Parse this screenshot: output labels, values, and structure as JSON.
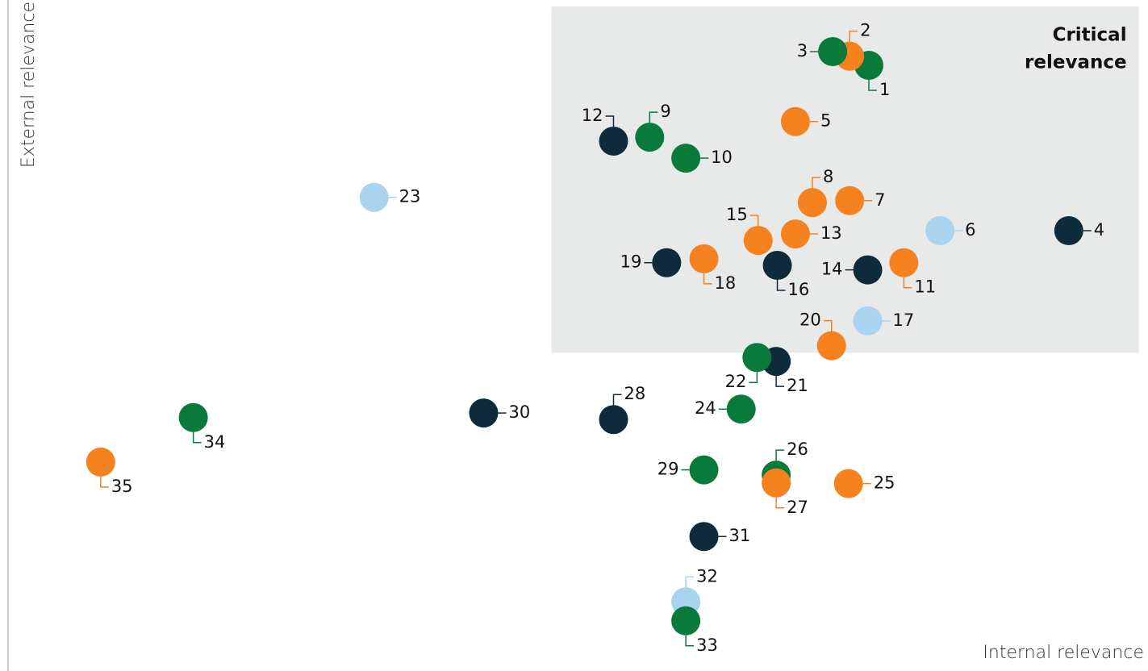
{
  "chart_data": {
    "type": "scatter",
    "x_label": "Internal relevance",
    "y_label": "External relevance",
    "xlim": [
      0,
      100.2
    ],
    "ylim": [
      0,
      101.2
    ],
    "highlight": {
      "label_lines": [
        "Critical",
        "relevance"
      ],
      "xlim": [
        48.1,
        100.1
      ],
      "ylim": [
        47.2,
        100.2
      ],
      "color": "#e8e9e9"
    },
    "labels": [
      "1",
      "2",
      "3",
      "4",
      "5",
      "6",
      "7",
      "8",
      "9",
      "10",
      "11",
      "12",
      "13",
      "14",
      "15",
      "16",
      "17",
      "18",
      "19",
      "20",
      "21",
      "22",
      "23",
      "24",
      "25",
      "26",
      "27",
      "28",
      "29",
      "30",
      "31",
      "32",
      "33",
      "34",
      "35"
    ],
    "x": [
      76.2,
      74.5,
      73.0,
      93.9,
      69.7,
      82.5,
      74.5,
      71.2,
      56.8,
      60.0,
      79.3,
      53.6,
      69.7,
      76.1,
      66.4,
      68.1,
      76.1,
      61.6,
      58.3,
      72.9,
      68.0,
      66.3,
      32.4,
      64.9,
      74.4,
      68.0,
      68.0,
      53.6,
      61.6,
      42.1,
      61.6,
      60.0,
      60.0,
      16.4,
      8.2
    ],
    "y": [
      91.2,
      92.6,
      93.3,
      65.9,
      82.6,
      65.9,
      70.5,
      70.2,
      80.2,
      77.0,
      61.0,
      79.6,
      65.4,
      59.9,
      64.4,
      60.6,
      52.1,
      61.6,
      61.0,
      48.3,
      45.9,
      46.5,
      71.0,
      38.6,
      27.2,
      28.5,
      27.3,
      37.0,
      29.3,
      38.0,
      19.1,
      9.1,
      6.2,
      37.3,
      30.5
    ],
    "colors": [
      "#0a7a3c",
      "#f6821f",
      "#0a7a3c",
      "#0d2b3a",
      "#f6821f",
      "#a9d3ee",
      "#f6821f",
      "#f6821f",
      "#0a7a3c",
      "#0a7a3c",
      "#f6821f",
      "#0d2b3a",
      "#f6821f",
      "#0d2b3a",
      "#f6821f",
      "#0d2b3a",
      "#a9d3ee",
      "#f6821f",
      "#0d2b3a",
      "#f6821f",
      "#0d2b3a",
      "#0a7a3c",
      "#a9d3ee",
      "#0a7a3c",
      "#f6821f",
      "#0a7a3c",
      "#f6821f",
      "#0d2b3a",
      "#0a7a3c",
      "#0d2b3a",
      "#0d2b3a",
      "#a9d3ee",
      "#0a7a3c",
      "#0a7a3c",
      "#f6821f"
    ]
  }
}
